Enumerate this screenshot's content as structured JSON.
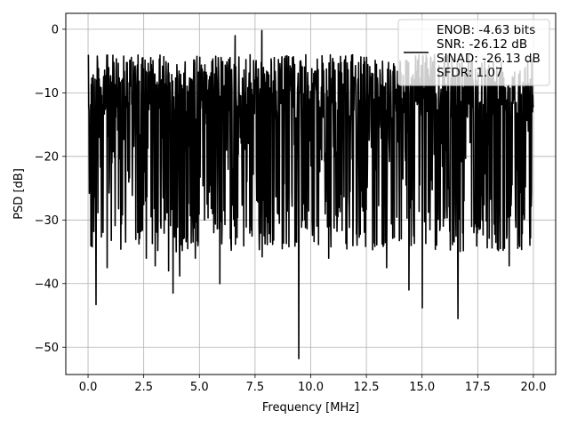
{
  "chart_data": {
    "type": "line",
    "title": "",
    "xlabel": "Frequency [MHz]",
    "ylabel": "PSD [dB]",
    "xlim": [
      -1.0,
      21.0
    ],
    "ylim": [
      -54.3,
      2.5
    ],
    "grid": true,
    "legend_position": "top-right",
    "xticks": [
      0.0,
      2.5,
      5.0,
      7.5,
      10.0,
      12.5,
      15.0,
      17.5,
      20.0
    ],
    "xtick_labels": [
      "0.0",
      "2.5",
      "5.0",
      "7.5",
      "10.0",
      "12.5",
      "15.0",
      "17.5",
      "20.0"
    ],
    "yticks": [
      0,
      -10,
      -20,
      -30,
      -40,
      -50
    ],
    "ytick_labels": [
      "0",
      "−10",
      "−20",
      "−30",
      "−40",
      "−50"
    ],
    "legend": [
      "ENOB: -4.63 bits",
      "SNR: -26.12 dB",
      "SINAD: -26.13 dB",
      "SFDR: 1.07"
    ],
    "series": [
      {
        "color": "#000000",
        "x_range": [
          0.0,
          20.0
        ],
        "points": 1400,
        "typical_range": [
          -29,
          -4
        ],
        "notable_points": [
          {
            "x": 0.0,
            "y": -4.2
          },
          {
            "x": 0.05,
            "y": -25.8
          },
          {
            "x": 0.35,
            "y": -43.3
          },
          {
            "x": 0.85,
            "y": -37.5
          },
          {
            "x": 2.6,
            "y": -36.0
          },
          {
            "x": 3.0,
            "y": -37.2
          },
          {
            "x": 3.6,
            "y": -38.0
          },
          {
            "x": 3.8,
            "y": -41.5
          },
          {
            "x": 4.1,
            "y": -38.8
          },
          {
            "x": 4.8,
            "y": -36.0
          },
          {
            "x": 5.9,
            "y": -40.0
          },
          {
            "x": 6.6,
            "y": -1.0
          },
          {
            "x": 7.8,
            "y": -0.2
          },
          {
            "x": 7.8,
            "y": -35.8
          },
          {
            "x": 9.45,
            "y": -51.8
          },
          {
            "x": 10.8,
            "y": -36.0
          },
          {
            "x": 13.4,
            "y": -37.5
          },
          {
            "x": 14.4,
            "y": -41.0
          },
          {
            "x": 15.0,
            "y": -43.8
          },
          {
            "x": 16.6,
            "y": -45.5
          },
          {
            "x": 18.9,
            "y": -37.2
          },
          {
            "x": 20.0,
            "y": -12.0
          }
        ]
      }
    ]
  }
}
